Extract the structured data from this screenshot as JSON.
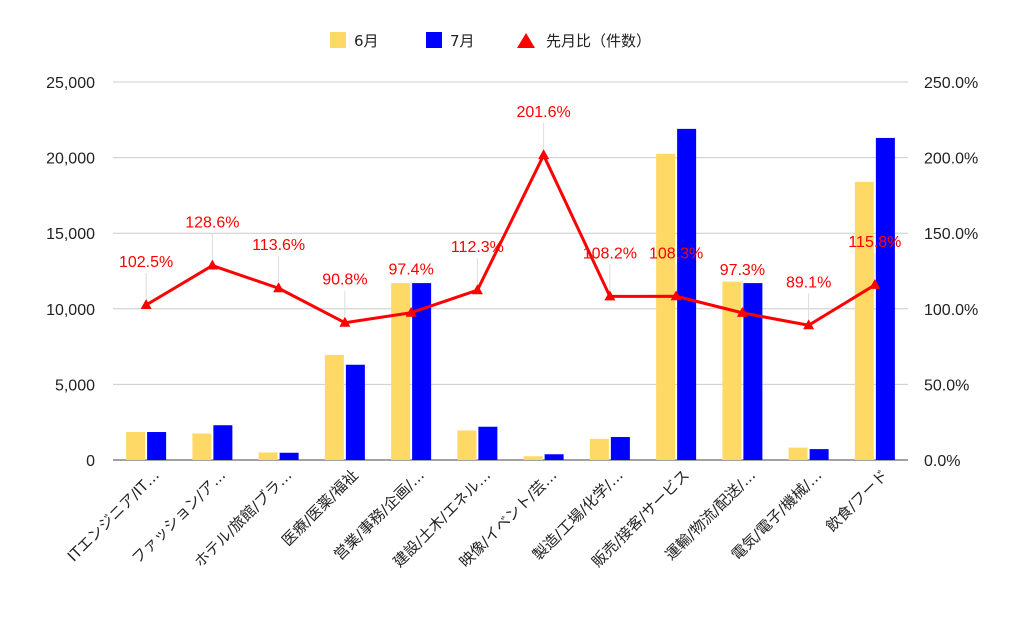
{
  "chart_data": {
    "type": "bar",
    "categories": [
      "ITエンジニア/IT…",
      "ファッション/ア…",
      "ホテル/旅館/ブラ…",
      "医療/医薬/福祉",
      "営業/事務/企画/…",
      "建設/土木/エネル…",
      "映像/イベント/芸…",
      "製造/工場/化学/…",
      "販売/接客/サービス",
      "運輸/物流/配送/…",
      "電気/電子/機械/…",
      "飲食/フード"
    ],
    "series": [
      {
        "name": "6月",
        "type": "bar",
        "axis": "left",
        "color": "#ffd966",
        "values": [
          1850,
          1750,
          500,
          6950,
          11700,
          1950,
          250,
          1400,
          20250,
          11800,
          820,
          18400
        ]
      },
      {
        "name": "7月",
        "type": "bar",
        "axis": "left",
        "color": "#0000ff",
        "values": [
          1850,
          2300,
          480,
          6300,
          11700,
          2200,
          380,
          1520,
          21900,
          11700,
          720,
          21300
        ]
      },
      {
        "name": "先月比（件数）",
        "type": "line",
        "axis": "right",
        "color": "#ff0000",
        "values": [
          102.5,
          128.6,
          113.6,
          90.8,
          97.4,
          112.3,
          201.6,
          108.2,
          108.3,
          97.3,
          89.1,
          115.8
        ],
        "labels": [
          "102.5%",
          "128.6%",
          "113.6%",
          "90.8%",
          "97.4%",
          "112.3%",
          "201.6%",
          "108.2%",
          "108.3%",
          "97.3%",
          "89.1%",
          "115.8%"
        ]
      }
    ],
    "y_left": {
      "ylim": [
        0,
        25000
      ],
      "ticks": [
        "0",
        "5,000",
        "10,000",
        "15,000",
        "20,000",
        "25,000"
      ]
    },
    "y_right": {
      "ylim": [
        0,
        250
      ],
      "ticks": [
        "0.0%",
        "50.0%",
        "100.0%",
        "150.0%",
        "200.0%",
        "250.0%"
      ]
    },
    "legend_position": "top-center",
    "grid": true
  }
}
